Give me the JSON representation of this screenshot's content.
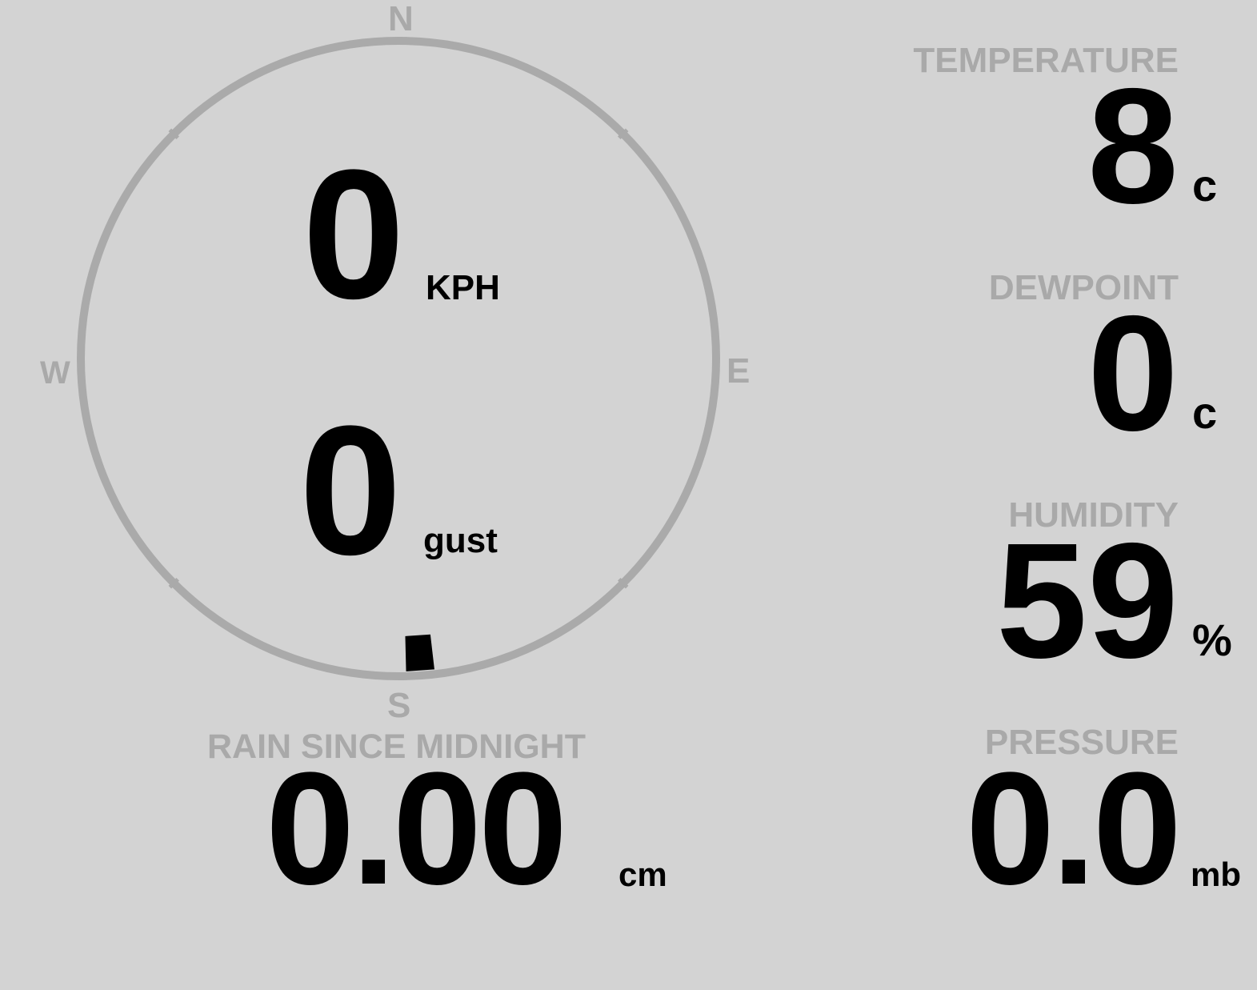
{
  "compass": {
    "north": "N",
    "south": "S",
    "east": "E",
    "west": "W",
    "wind_direction_deg": 176,
    "ring_color": "#aaaaaa",
    "marker_color": "#000000"
  },
  "wind": {
    "speed": "0",
    "speed_unit": "KPH",
    "gust": "0",
    "gust_unit": "gust"
  },
  "rain": {
    "label": "RAIN SINCE MIDNIGHT",
    "value": "0.00",
    "unit": "cm"
  },
  "temperature": {
    "label": "TEMPERATURE",
    "value": "8",
    "unit": "c"
  },
  "dewpoint": {
    "label": "DEWPOINT",
    "value": "0",
    "unit": "c"
  },
  "humidity": {
    "label": "HUMIDITY",
    "value": "59",
    "unit": "%"
  },
  "pressure": {
    "label": "PRESSURE",
    "value": "0.0",
    "unit": "mb"
  },
  "colors": {
    "background": "#d3d3d3",
    "label": "#a9a9a9",
    "value": "#000000"
  }
}
